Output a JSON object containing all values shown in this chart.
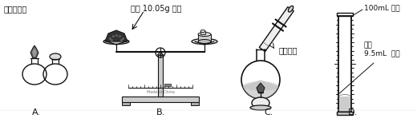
{
  "bg_color": "#ffffff",
  "label_A": "点燃酒精灯",
  "label_B_title": "称量 10.05g 固体",
  "label_C": "液体加热",
  "label_D_1": "100mL 量筒",
  "label_D_2": "量取\n9.5mL  液体",
  "letter_A": "A.",
  "letter_B": "B.",
  "letter_C": "C.",
  "letter_D": "D.",
  "text_color": "#111111",
  "line_color": "#111111",
  "figsize": [
    5.2,
    1.68
  ],
  "dpi": 100
}
